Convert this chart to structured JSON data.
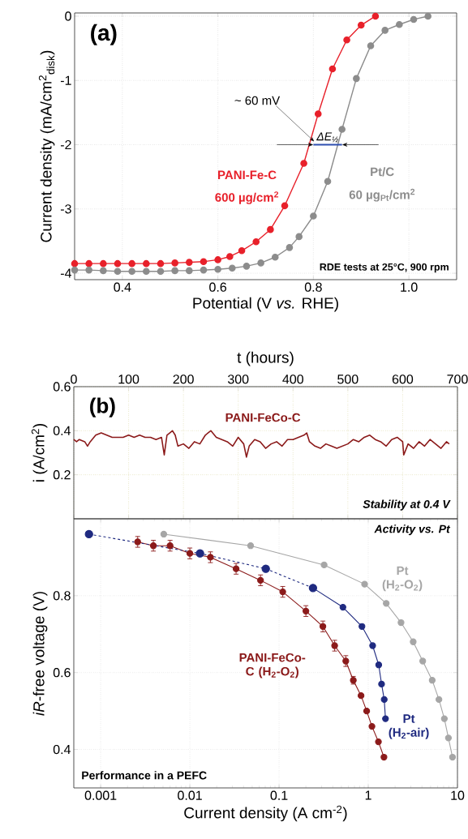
{
  "chart_data": [
    {
      "type": "line",
      "xlabel": "Potential (V *vs.* RHE)",
      "ylabel": "Current density (mA/cm$^{2}$$_{disk}$)",
      "xlim": [
        0.3,
        1.1
      ],
      "ylim": [
        -4.1,
        0.05
      ],
      "xticks": [
        0.4,
        0.6,
        0.8,
        {
          "value": 1.0,
          "label": "1.0"
        }
      ],
      "yticks": [
        -4,
        -3,
        -2,
        -1,
        0
      ],
      "grid": true,
      "marker": "circle",
      "annotations": [
        "(a)",
        "RDE tests at 25°C, 900 rpm",
        {
          "text": "~ 60 mV",
          "x": 0.8,
          "y": -2
        },
        {
          "text": "ΔE$_{½}$",
          "x": 0.83,
          "y": -2
        },
        "600 µg/cm$^{2}$",
        "60 µg$_{Pt}$/cm$^{2}$"
      ],
      "series": [
        {
          "name": "PANI-Fe-C",
          "color": "#e8202a",
          "x": [
            0.3,
            0.33,
            0.36,
            0.39,
            0.42,
            0.45,
            0.48,
            0.51,
            0.54,
            0.57,
            0.6,
            0.625,
            0.65,
            0.68,
            0.71,
            0.74,
            0.78,
            0.81,
            0.84,
            0.87,
            0.9,
            0.93
          ],
          "values": [
            -3.85,
            -3.85,
            -3.85,
            -3.85,
            -3.85,
            -3.85,
            -3.85,
            -3.84,
            -3.83,
            -3.82,
            -3.79,
            -3.74,
            -3.65,
            -3.51,
            -3.32,
            -2.95,
            -2.29,
            -1.52,
            -0.82,
            -0.37,
            -0.14,
            0.0
          ]
        },
        {
          "name": "Pt/C",
          "color": "#8c8c8c",
          "x": [
            0.3,
            0.33,
            0.36,
            0.39,
            0.42,
            0.45,
            0.48,
            0.51,
            0.54,
            0.57,
            0.6,
            0.63,
            0.66,
            0.69,
            0.72,
            0.75,
            0.77,
            0.8,
            0.83,
            0.86,
            0.89,
            0.92,
            0.95,
            0.98,
            1.01,
            1.04
          ],
          "values": [
            -3.95,
            -3.95,
            -3.96,
            -3.97,
            -3.97,
            -3.97,
            -3.97,
            -3.96,
            -3.96,
            -3.95,
            -3.94,
            -3.92,
            -3.89,
            -3.84,
            -3.75,
            -3.6,
            -3.43,
            -3.11,
            -2.57,
            -1.76,
            -0.97,
            -0.46,
            -0.22,
            -0.13,
            -0.05,
            0.0
          ]
        },
        {
          "color": "#2f4fb0",
          "marker": "none",
          "x": [
            0.8,
            0.86
          ],
          "values": [
            -2,
            -2
          ]
        }
      ]
    },
    {
      "type": "line",
      "xlabel": "t (hours)",
      "ylabel": "i (A/cm$^{2}$)",
      "xlim": [
        0,
        700
      ],
      "ylim": [
        0,
        0.6
      ],
      "xticks": [
        0,
        100,
        200,
        300,
        400,
        500,
        600,
        700
      ],
      "yticks": [
        0.2,
        0.4,
        0.6
      ],
      "grid": true,
      "marker": "none",
      "annotations": [
        "(b)",
        "Stability at 0.4 V"
      ],
      "series": [
        {
          "name": "PANI-FeCo-C",
          "color": "#8b1a1a",
          "x": [
            0,
            5,
            10,
            20,
            25,
            30,
            40,
            50,
            60,
            70,
            80,
            90,
            100,
            110,
            120,
            130,
            140,
            150,
            160,
            165,
            170,
            180,
            185,
            190,
            200,
            210,
            220,
            230,
            240,
            250,
            260,
            270,
            280,
            290,
            300,
            310,
            315,
            320,
            330,
            340,
            350,
            360,
            370,
            380,
            390,
            400,
            410,
            420,
            425,
            430,
            440,
            450,
            460,
            470,
            480,
            490,
            500,
            510,
            520,
            530,
            540,
            550,
            560,
            570,
            580,
            590,
            600,
            602,
            610,
            620,
            630,
            640,
            650,
            660,
            670,
            680,
            685
          ],
          "values": [
            0.36,
            0.35,
            0.36,
            0.35,
            0.33,
            0.35,
            0.38,
            0.39,
            0.38,
            0.37,
            0.37,
            0.37,
            0.38,
            0.37,
            0.38,
            0.37,
            0.37,
            0.36,
            0.37,
            0.29,
            0.38,
            0.4,
            0.38,
            0.33,
            0.34,
            0.32,
            0.35,
            0.34,
            0.38,
            0.4,
            0.37,
            0.36,
            0.35,
            0.33,
            0.37,
            0.34,
            0.28,
            0.33,
            0.36,
            0.35,
            0.32,
            0.34,
            0.35,
            0.33,
            0.36,
            0.36,
            0.37,
            0.38,
            0.39,
            0.35,
            0.33,
            0.32,
            0.34,
            0.33,
            0.32,
            0.33,
            0.34,
            0.36,
            0.35,
            0.37,
            0.38,
            0.36,
            0.35,
            0.33,
            0.36,
            0.37,
            0.35,
            0.29,
            0.34,
            0.32,
            0.35,
            0.33,
            0.36,
            0.34,
            0.32,
            0.35,
            0.34
          ]
        }
      ]
    },
    {
      "type": "line",
      "xlabel": "Current density (A cm$^{-2}$)",
      "ylabel": "*iR*-free voltage (V)",
      "log": "x",
      "xlim": [
        0.0005,
        10
      ],
      "ylim": [
        0.3,
        1.0
      ],
      "xticks": [
        0.001,
        0.01,
        0.1,
        1,
        10
      ],
      "yticks": [
        0.4,
        0.6,
        0.8
      ],
      "grid": true,
      "marker": "circle",
      "annotations": [
        "Activity vs. Pt",
        "Performance in a PEFC"
      ],
      "series": [
        {
          "name": "PANI-FeCo-C (H$_{2}$-O$_{2}$)",
          "color": "#8b1a1a",
          "x": [
            0.0026,
            0.0039,
            0.006,
            0.01,
            0.017,
            0.033,
            0.062,
            0.11,
            0.2,
            0.31,
            0.42,
            0.56,
            0.68,
            0.83,
            0.96,
            1.1,
            1.3,
            1.5
          ],
          "values": [
            0.94,
            0.93,
            0.93,
            0.91,
            0.9,
            0.87,
            0.84,
            0.81,
            0.76,
            0.72,
            0.67,
            0.63,
            0.58,
            0.54,
            0.5,
            0.46,
            0.42,
            0.38
          ],
          "errors": [
            0.014,
            0.014,
            0.014,
            0.014,
            0.014,
            0.014,
            0.014,
            0.014,
            0.014,
            0.014,
            0.014,
            0.014,
            0.01,
            null,
            null,
            null,
            null,
            null
          ]
        },
        {
          "color": "#1f2a80",
          "line_style": "dashed",
          "x": [
            0.00074,
            0.013,
            0.071,
            0.24
          ],
          "values": [
            0.96,
            0.91,
            0.87,
            0.82
          ]
        },
        {
          "name": "Pt (H$_{2}$-air)",
          "color": "#1f2a80",
          "x": [
            0.24,
            0.52,
            0.85,
            1.12,
            1.31,
            1.41,
            1.51,
            1.56
          ],
          "values": [
            0.82,
            0.77,
            0.72,
            0.67,
            0.62,
            0.57,
            0.53,
            0.48
          ]
        },
        {
          "name": "Pt (H$_{2}$-O$_{2}$)",
          "color": "#a6a6a6",
          "x": [
            0.0051,
            0.048,
            0.32,
            0.91,
            1.59,
            2.33,
            3.19,
            4.08,
            5.21,
            6.2,
            7.13,
            7.92,
            8.8
          ],
          "values": [
            0.96,
            0.93,
            0.88,
            0.83,
            0.78,
            0.73,
            0.68,
            0.63,
            0.58,
            0.53,
            0.48,
            0.43,
            0.38
          ]
        }
      ]
    }
  ]
}
